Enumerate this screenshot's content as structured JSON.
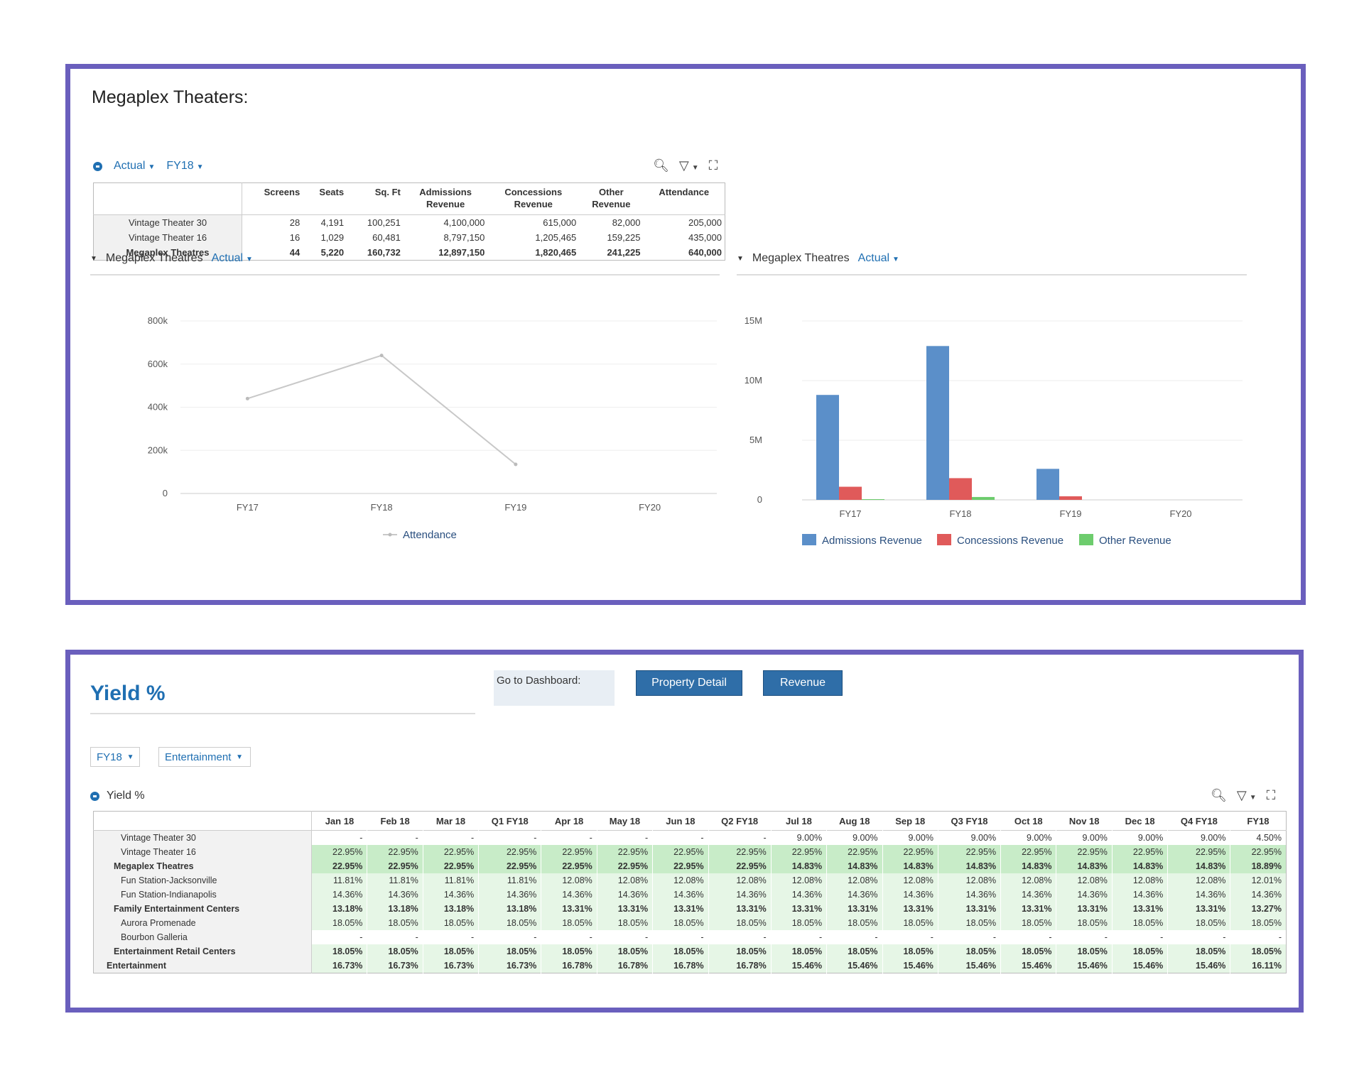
{
  "panel1": {
    "title": "Megaplex Theaters:",
    "pov": {
      "scenario": "Actual",
      "year": "FY18"
    },
    "table": {
      "headers": [
        [
          "Screens",
          ""
        ],
        [
          "Seats",
          ""
        ],
        [
          "Sq. Ft",
          ""
        ],
        [
          "Admissions",
          "Revenue"
        ],
        [
          "Concessions",
          "Revenue"
        ],
        [
          "Other",
          "Revenue"
        ],
        [
          "Attendance",
          ""
        ]
      ],
      "rows": [
        {
          "label": "Vintage Theater 30",
          "values": [
            "28",
            "4,191",
            "100,251",
            "4,100,000",
            "615,000",
            "82,000",
            "205,000"
          ]
        },
        {
          "label": "Vintage Theater 16",
          "values": [
            "16",
            "1,029",
            "60,481",
            "8,797,150",
            "1,205,465",
            "159,225",
            "435,000"
          ]
        },
        {
          "label": "Megaplex Theatres",
          "values": [
            "44",
            "5,220",
            "160,732",
            "12,897,150",
            "1,820,465",
            "241,225",
            "640,000"
          ]
        }
      ]
    },
    "line_chart": {
      "entity": "Megaplex Theatres",
      "scenario": "Actual"
    },
    "bar_chart": {
      "entity": "Megaplex Theatres",
      "scenario": "Actual"
    }
  },
  "chart_data": [
    {
      "type": "line",
      "categories": [
        "FY17",
        "FY18",
        "FY19",
        "FY20"
      ],
      "series": [
        {
          "name": "Attendance",
          "values": [
            440000,
            640000,
            135000,
            null
          ],
          "color": "#c8c8c8"
        }
      ],
      "ylim": [
        0,
        800000
      ],
      "yticks": [
        "0",
        "200k",
        "400k",
        "600k",
        "800k"
      ],
      "grid": true,
      "legend": "bottom"
    },
    {
      "type": "bar",
      "categories": [
        "FY17",
        "FY18",
        "FY19",
        "FY20"
      ],
      "series": [
        {
          "name": "Admissions Revenue",
          "values": [
            8797150,
            12897150,
            2600000,
            0
          ],
          "color": "#5b8fc9"
        },
        {
          "name": "Concessions Revenue",
          "values": [
            1100000,
            1820465,
            300000,
            0
          ],
          "color": "#e05a5a"
        },
        {
          "name": "Other Revenue",
          "values": [
            60000,
            241225,
            0,
            0
          ],
          "color": "#6dcc6d"
        }
      ],
      "ylim": [
        0,
        15000000
      ],
      "yticks": [
        "0",
        "5M",
        "10M",
        "15M"
      ],
      "grid": true,
      "legend": "bottom"
    }
  ],
  "panel2": {
    "title": "Yield %",
    "goto_label": "Go to Dashboard:",
    "buttons": {
      "property_detail": "Property Detail",
      "revenue": "Revenue"
    },
    "filters": {
      "year": "FY18",
      "segment": "Entertainment"
    },
    "grid_label": "Yield %",
    "columns": [
      "Jan 18",
      "Feb 18",
      "Mar 18",
      "Q1 FY18",
      "Apr 18",
      "May 18",
      "Jun 18",
      "Q2 FY18",
      "Jul 18",
      "Aug 18",
      "Sep 18",
      "Q3 FY18",
      "Oct 18",
      "Nov 18",
      "Dec 18",
      "Q4 FY18",
      "FY18"
    ],
    "rows": [
      {
        "label": "Vintage Theater 30",
        "indent": "i1",
        "bold": false,
        "shade": "none",
        "values": [
          "-",
          "-",
          "-",
          "-",
          "-",
          "-",
          "-",
          "-",
          "9.00%",
          "9.00%",
          "9.00%",
          "9.00%",
          "9.00%",
          "9.00%",
          "9.00%",
          "9.00%",
          "4.50%"
        ]
      },
      {
        "label": "Vintage Theater 16",
        "indent": "i1",
        "bold": false,
        "shade": "shade",
        "values": [
          "22.95%",
          "22.95%",
          "22.95%",
          "22.95%",
          "22.95%",
          "22.95%",
          "22.95%",
          "22.95%",
          "22.95%",
          "22.95%",
          "22.95%",
          "22.95%",
          "22.95%",
          "22.95%",
          "22.95%",
          "22.95%",
          "22.95%"
        ]
      },
      {
        "label": "Megaplex Theatres",
        "indent": "i2",
        "bold": true,
        "shade": "shade",
        "values": [
          "22.95%",
          "22.95%",
          "22.95%",
          "22.95%",
          "22.95%",
          "22.95%",
          "22.95%",
          "22.95%",
          "14.83%",
          "14.83%",
          "14.83%",
          "14.83%",
          "14.83%",
          "14.83%",
          "14.83%",
          "14.83%",
          "18.89%"
        ]
      },
      {
        "label": "Fun Station-Jacksonville",
        "indent": "i1",
        "bold": false,
        "shade": "light",
        "values": [
          "11.81%",
          "11.81%",
          "11.81%",
          "11.81%",
          "12.08%",
          "12.08%",
          "12.08%",
          "12.08%",
          "12.08%",
          "12.08%",
          "12.08%",
          "12.08%",
          "12.08%",
          "12.08%",
          "12.08%",
          "12.08%",
          "12.01%"
        ]
      },
      {
        "label": "Fun Station-Indianapolis",
        "indent": "i1",
        "bold": false,
        "shade": "light",
        "values": [
          "14.36%",
          "14.36%",
          "14.36%",
          "14.36%",
          "14.36%",
          "14.36%",
          "14.36%",
          "14.36%",
          "14.36%",
          "14.36%",
          "14.36%",
          "14.36%",
          "14.36%",
          "14.36%",
          "14.36%",
          "14.36%",
          "14.36%"
        ]
      },
      {
        "label": "Family Entertainment Centers",
        "indent": "i2",
        "bold": true,
        "shade": "light",
        "values": [
          "13.18%",
          "13.18%",
          "13.18%",
          "13.18%",
          "13.31%",
          "13.31%",
          "13.31%",
          "13.31%",
          "13.31%",
          "13.31%",
          "13.31%",
          "13.31%",
          "13.31%",
          "13.31%",
          "13.31%",
          "13.31%",
          "13.27%"
        ]
      },
      {
        "label": "Aurora Promenade",
        "indent": "i1",
        "bold": false,
        "shade": "light",
        "values": [
          "18.05%",
          "18.05%",
          "18.05%",
          "18.05%",
          "18.05%",
          "18.05%",
          "18.05%",
          "18.05%",
          "18.05%",
          "18.05%",
          "18.05%",
          "18.05%",
          "18.05%",
          "18.05%",
          "18.05%",
          "18.05%",
          "18.05%"
        ]
      },
      {
        "label": "Bourbon Galleria",
        "indent": "i1",
        "bold": false,
        "shade": "none",
        "values": [
          "-",
          "-",
          "-",
          "-",
          "-",
          "-",
          "-",
          "-",
          "-",
          "-",
          "-",
          "-",
          "-",
          "-",
          "-",
          "-",
          "-"
        ]
      },
      {
        "label": "Entertainment Retail Centers",
        "indent": "i2",
        "bold": true,
        "shade": "light",
        "values": [
          "18.05%",
          "18.05%",
          "18.05%",
          "18.05%",
          "18.05%",
          "18.05%",
          "18.05%",
          "18.05%",
          "18.05%",
          "18.05%",
          "18.05%",
          "18.05%",
          "18.05%",
          "18.05%",
          "18.05%",
          "18.05%",
          "18.05%"
        ]
      },
      {
        "label": "Entertainment",
        "indent": "i3",
        "bold": true,
        "shade": "light",
        "values": [
          "16.73%",
          "16.73%",
          "16.73%",
          "16.73%",
          "16.78%",
          "16.78%",
          "16.78%",
          "16.78%",
          "15.46%",
          "15.46%",
          "15.46%",
          "15.46%",
          "15.46%",
          "15.46%",
          "15.46%",
          "15.46%",
          "16.11%"
        ]
      }
    ]
  }
}
